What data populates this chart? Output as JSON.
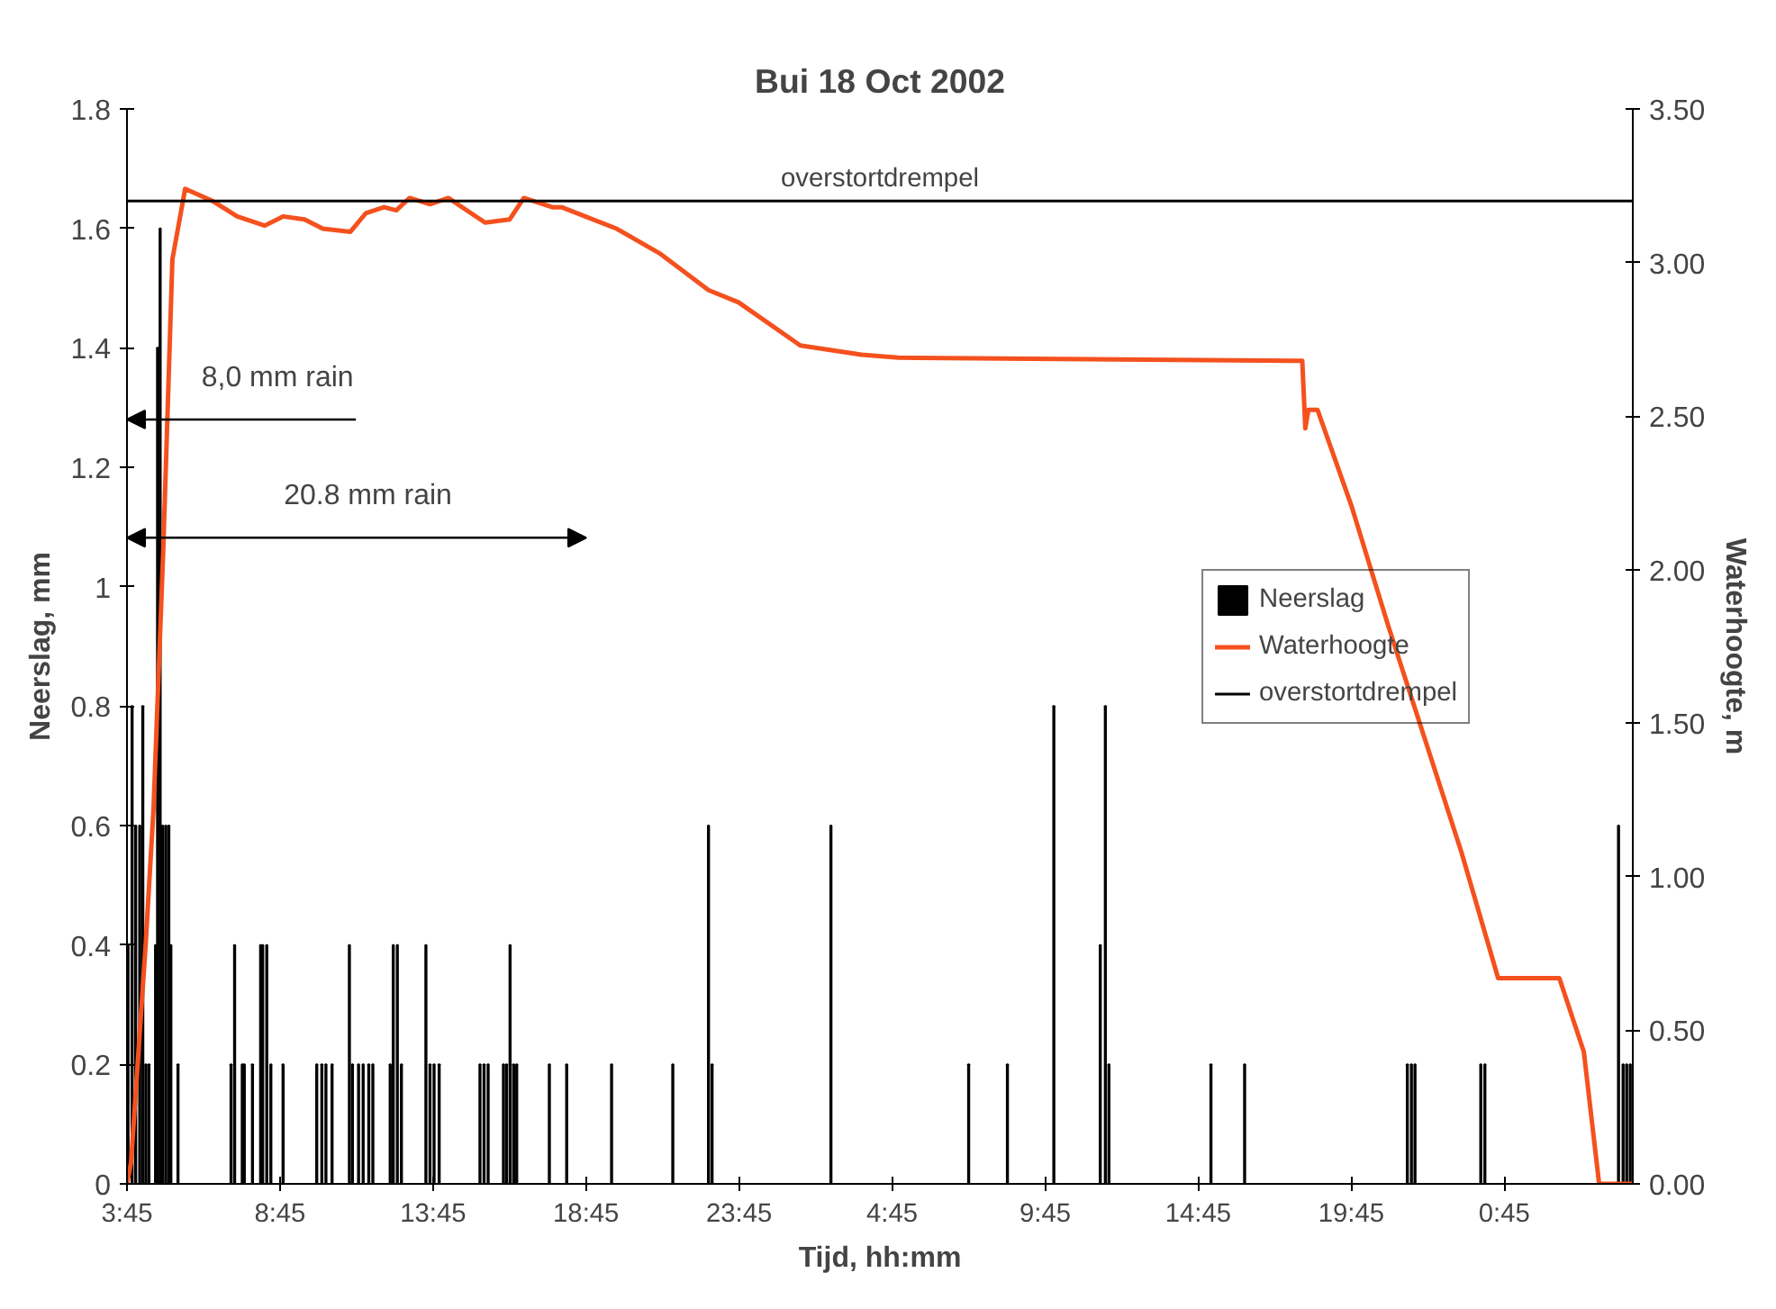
{
  "chart_data": {
    "type": "bar",
    "title": "Bui 18 Oct 2002",
    "xlabel": "Tijd, hh:mm",
    "ylabel": "Neerslag, mm",
    "y2label": "Waterhoogte, m",
    "xlim": [
      "2002-10-18T03:45",
      "2002-10-20T04:57"
    ],
    "xticks": [
      {
        "value": "2002-10-18T03:45",
        "label": "3:45"
      },
      {
        "value": "2002-10-18T08:45",
        "label": "8:45"
      },
      {
        "value": "2002-10-18T13:45",
        "label": "13:45"
      },
      {
        "value": "2002-10-18T18:45",
        "label": "18:45"
      },
      {
        "value": "2002-10-18T23:45",
        "label": "23:45"
      },
      {
        "value": "2002-10-19T04:45",
        "label": "4:45"
      },
      {
        "value": "2002-10-19T09:45",
        "label": "9:45"
      },
      {
        "value": "2002-10-19T14:45",
        "label": "14:45"
      },
      {
        "value": "2002-10-19T19:45",
        "label": "19:45"
      },
      {
        "value": "2002-10-20T00:45",
        "label": "0:45"
      }
    ],
    "ylim": [
      0,
      1.8
    ],
    "yticks": [
      0,
      0.2,
      0.4,
      0.6,
      0.8,
      1,
      1.2,
      1.4,
      1.6,
      1.8
    ],
    "y2lim": [
      0,
      3.5
    ],
    "y2ticks": [
      {
        "value": 0,
        "label": "0.00"
      },
      {
        "value": 0.5,
        "label": "0.50"
      },
      {
        "value": 1,
        "label": "1.00"
      },
      {
        "value": 1.5,
        "label": "1.50"
      },
      {
        "value": 2,
        "label": "2.00"
      },
      {
        "value": 2.5,
        "label": "2.50"
      },
      {
        "value": 3,
        "label": "3.00"
      },
      {
        "value": 3.5,
        "label": "3.50"
      }
    ],
    "series": [
      {
        "name": "Neerslag",
        "color": "#000000",
        "x": [
          "2002-10-18T03:47",
          "2002-10-18T03:55",
          "2002-10-18T04:02",
          "2002-10-18T04:10",
          "2002-10-18T04:16",
          "2002-10-18T04:22",
          "2002-10-18T04:28",
          "2002-10-18T04:41",
          "2002-10-18T04:45",
          "2002-10-18T04:50",
          "2002-10-18T04:55",
          "2002-10-18T05:01",
          "2002-10-18T05:07",
          "2002-10-18T05:11",
          "2002-10-18T05:25",
          "2002-10-18T07:09",
          "2002-10-18T07:16",
          "2002-10-18T07:31",
          "2002-10-18T07:35",
          "2002-10-18T07:51",
          "2002-10-18T08:07",
          "2002-10-18T08:11",
          "2002-10-18T08:19",
          "2002-10-18T08:27",
          "2002-10-18T08:51",
          "2002-10-18T09:57",
          "2002-10-18T10:07",
          "2002-10-18T10:15",
          "2002-10-18T10:27",
          "2002-10-18T11:01",
          "2002-10-18T11:07",
          "2002-10-18T11:19",
          "2002-10-18T11:28",
          "2002-10-18T11:39",
          "2002-10-18T11:47",
          "2002-10-18T12:21",
          "2002-10-18T12:27",
          "2002-10-18T12:35",
          "2002-10-18T12:43",
          "2002-10-18T13:31",
          "2002-10-18T13:39",
          "2002-10-18T13:47",
          "2002-10-18T13:57",
          "2002-10-18T15:17",
          "2002-10-18T15:25",
          "2002-10-18T15:33",
          "2002-10-18T16:03",
          "2002-10-18T16:09",
          "2002-10-18T16:16",
          "2002-10-18T16:23",
          "2002-10-18T16:29",
          "2002-10-18T17:33",
          "2002-10-18T18:07",
          "2002-10-18T19:35",
          "2002-10-18T21:35",
          "2002-10-18T22:45",
          "2002-10-18T22:52",
          "2002-10-19T02:45",
          "2002-10-19T07:15",
          "2002-10-19T08:31",
          "2002-10-19T10:02",
          "2002-10-19T11:33",
          "2002-10-19T11:43",
          "2002-10-19T11:50",
          "2002-10-19T15:10",
          "2002-10-19T16:16",
          "2002-10-19T21:35",
          "2002-10-19T21:43",
          "2002-10-19T21:50",
          "2002-10-19T23:59",
          "2002-10-20T00:07",
          "2002-10-20T04:29",
          "2002-10-20T04:38",
          "2002-10-20T04:45",
          "2002-10-20T04:52"
        ],
        "values": [
          0.4,
          0.8,
          0.6,
          0.6,
          0.8,
          0.2,
          0.2,
          0.4,
          1.4,
          1.6,
          0.6,
          0.6,
          0.6,
          0.4,
          0.2,
          0.2,
          0.4,
          0.2,
          0.2,
          0.2,
          0.4,
          0.4,
          0.4,
          0.2,
          0.2,
          0.2,
          0.2,
          0.2,
          0.2,
          0.4,
          0.2,
          0.2,
          0.2,
          0.2,
          0.2,
          0.2,
          0.4,
          0.4,
          0.2,
          0.4,
          0.2,
          0.2,
          0.2,
          0.2,
          0.2,
          0.2,
          0.2,
          0.2,
          0.4,
          0.2,
          0.2,
          0.2,
          0.2,
          0.2,
          0.2,
          0.6,
          0.2,
          0.6,
          0.2,
          0.2,
          0.8,
          0.4,
          0.8,
          0.2,
          0.2,
          0.2,
          0.2,
          0.2,
          0.2,
          0.2,
          0.2,
          0.6,
          0.2,
          0.2,
          0.2
        ]
      },
      {
        "name": "Waterhoogte",
        "type": "line",
        "axis": "y2",
        "color": "#f4511e",
        "x": [
          "2002-10-18T03:45",
          "2002-10-18T03:53",
          "2002-10-18T04:22",
          "2002-10-18T04:37",
          "2002-10-18T04:56",
          "2002-10-18T05:14",
          "2002-10-18T05:39",
          "2002-10-18T06:33",
          "2002-10-18T07:21",
          "2002-10-18T08:15",
          "2002-10-18T08:51",
          "2002-10-18T09:33",
          "2002-10-18T10:09",
          "2002-10-18T11:03",
          "2002-10-18T11:33",
          "2002-10-18T12:09",
          "2002-10-18T12:33",
          "2002-10-18T12:59",
          "2002-10-18T13:39",
          "2002-10-18T14:15",
          "2002-10-18T15:27",
          "2002-10-18T16:15",
          "2002-10-18T16:43",
          "2002-10-18T17:39",
          "2002-10-18T17:57",
          "2002-10-18T19:45",
          "2002-10-18T21:09",
          "2002-10-18T22:45",
          "2002-10-18T23:44",
          "2002-10-19T01:45",
          "2002-10-19T03:45",
          "2002-10-19T04:57",
          "2002-10-19T17:51",
          "2002-10-19T18:09",
          "2002-10-19T18:15",
          "2002-10-19T18:21",
          "2002-10-19T18:39",
          "2002-10-19T19:45",
          "2002-10-19T20:57",
          "2002-10-19T22:09",
          "2002-10-19T23:21",
          "2002-10-20T00:33",
          "2002-10-20T02:33",
          "2002-10-20T03:21",
          "2002-10-20T03:51",
          "2002-10-20T04:57"
        ],
        "values": [
          0,
          0.07,
          0.79,
          1.22,
          2.06,
          3.01,
          3.24,
          3.2,
          3.15,
          3.12,
          3.15,
          3.14,
          3.11,
          3.1,
          3.16,
          3.18,
          3.17,
          3.21,
          3.19,
          3.21,
          3.13,
          3.14,
          3.21,
          3.18,
          3.18,
          3.11,
          3.03,
          2.91,
          2.87,
          2.73,
          2.7,
          2.69,
          2.68,
          2.68,
          2.46,
          2.52,
          2.52,
          2.21,
          1.82,
          1.45,
          1.08,
          0.67,
          0.67,
          0.43,
          0,
          0
        ]
      }
    ],
    "ref_lines": [
      {
        "axis": "y2",
        "value": 3.2,
        "label": "overstortdrempel",
        "color": "#000000",
        "line_style": "solid"
      }
    ],
    "annotations": [
      "8,0 mm rain",
      "20.8 mm rain"
    ],
    "legend": "right",
    "grid": false
  }
}
